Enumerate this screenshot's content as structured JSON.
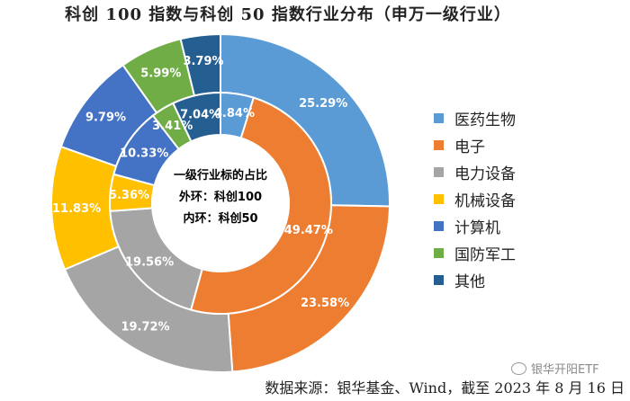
{
  "title": "科创 100 指数与科创 50 指数行业分布（申万一级行业）",
  "source": "数据来源：银华基金、Wind，截至 2023 年 8 月 16 日",
  "watermark": "银华开阳ETF",
  "center_labels": {
    "line1": "一级行业标的占比",
    "line2": "外环：科创100",
    "line3": "内环：科创50"
  },
  "chart_data": {
    "type": "pie",
    "style": "nested-donut",
    "title": "科创 100 指数与科创 50 指数行业分布（申万一级行业）",
    "legend_position": "right",
    "categories": [
      "医药生物",
      "电子",
      "电力设备",
      "机械设备",
      "计算机",
      "国防军工",
      "其他"
    ],
    "colors": [
      "#5b9bd5",
      "#ed7d31",
      "#a5a5a5",
      "#ffc000",
      "#4472c4",
      "#70ad47",
      "#255e91"
    ],
    "series": [
      {
        "name": "外环：科创100",
        "values": [
          25.29,
          23.58,
          19.72,
          11.83,
          9.79,
          5.99,
          3.79
        ]
      },
      {
        "name": "内环：科创50",
        "values": [
          4.84,
          49.47,
          19.56,
          5.36,
          10.33,
          3.41,
          7.04
        ]
      }
    ]
  }
}
